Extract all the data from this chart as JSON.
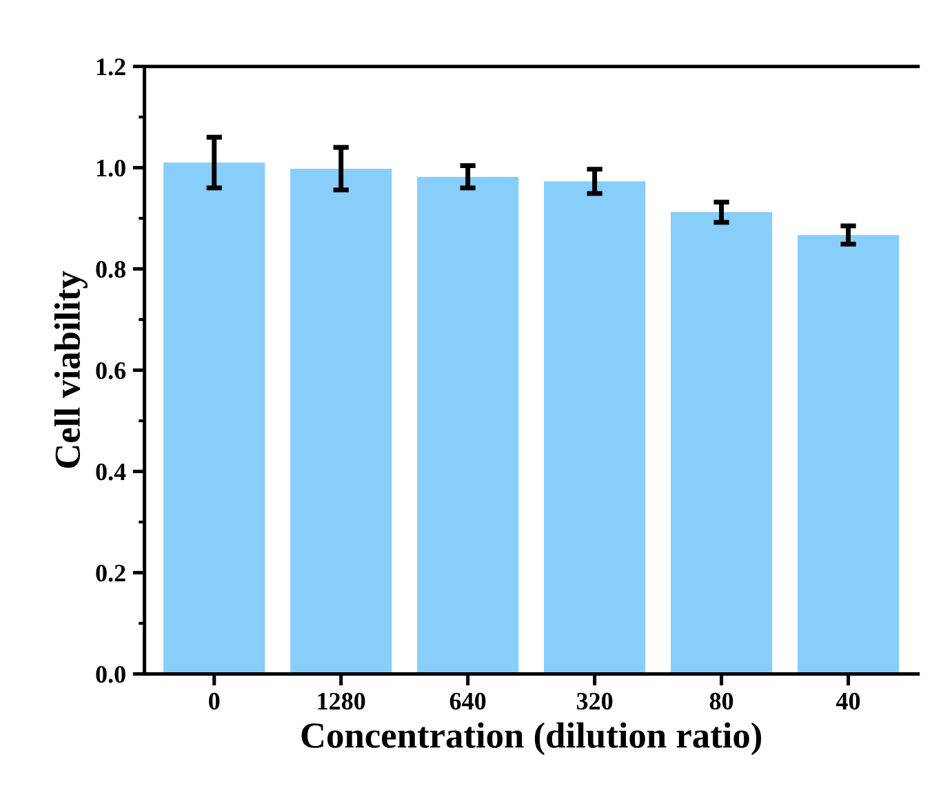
{
  "chart_data": {
    "type": "bar",
    "xlabel": "Concentration (dilution ratio)",
    "ylabel": "Cell viability",
    "categories": [
      "0",
      "1280",
      "640",
      "320",
      "80",
      "40"
    ],
    "values": [
      1.01,
      0.998,
      0.982,
      0.973,
      0.912,
      0.867
    ],
    "errors": [
      0.05,
      0.042,
      0.022,
      0.024,
      0.02,
      0.018
    ],
    "color": "#87cefa",
    "ylim": [
      0,
      1.2
    ],
    "yticks": [
      {
        "value": 0,
        "label": "0.0"
      },
      0.2,
      0.4,
      0.6,
      0.8,
      {
        "value": 1,
        "label": "1.0"
      },
      1.2
    ],
    "grid": false
  }
}
